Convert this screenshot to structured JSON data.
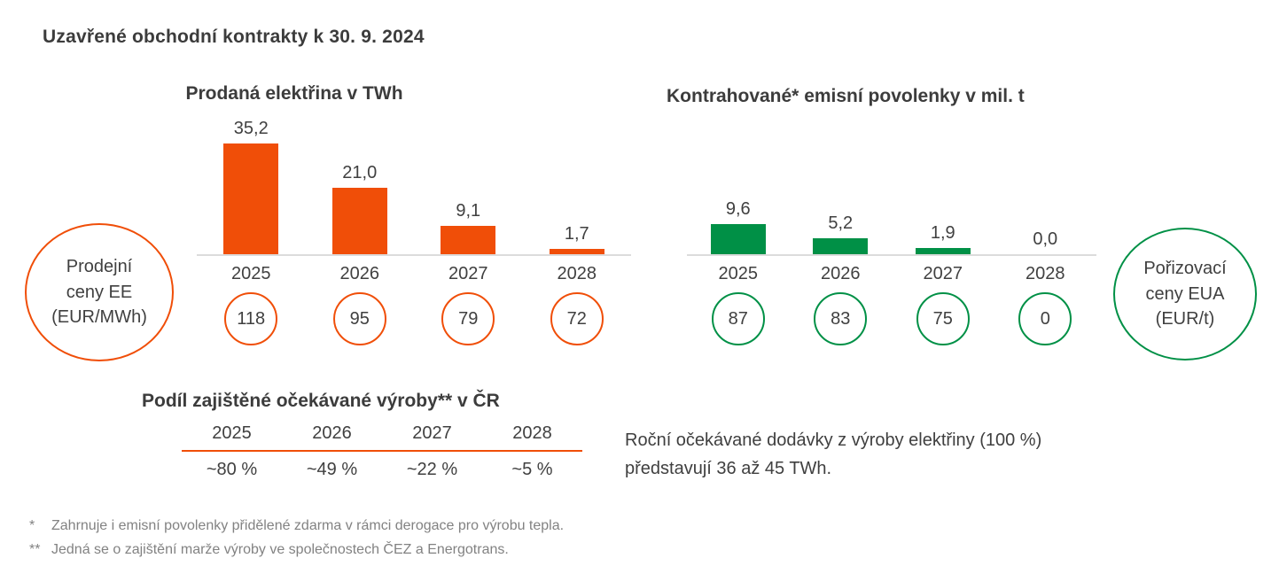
{
  "page_title": "Uzavřené obchodní kontrakty k 30. 9. 2024",
  "colors": {
    "orange": "#F04E08",
    "green": "#009046",
    "text_dark": "#3C3C3C",
    "footnote_gray": "#828282",
    "axis_gray": "#DCDCDC"
  },
  "chart_data": [
    {
      "type": "bar",
      "id": "sold-electricity",
      "title": "Prodaná elektřina v TWh",
      "categories": [
        "2025",
        "2026",
        "2027",
        "2028"
      ],
      "values": [
        35.2,
        21.0,
        9.1,
        1.7
      ],
      "value_labels": [
        "35,2",
        "21,0",
        "9,1",
        "1,7"
      ],
      "circle_values": [
        "118",
        "95",
        "79",
        "72"
      ],
      "circle_unit_label": "Prodejní ceny EE (EUR/MWh)",
      "bar_color": "#F04E08",
      "ylim": [
        0,
        38
      ],
      "grid": false,
      "legend": "none"
    },
    {
      "type": "bar",
      "id": "contracted-emission-allowances",
      "title": "Kontrahované* emisní povolenky v mil. t",
      "categories": [
        "2025",
        "2026",
        "2027",
        "2028"
      ],
      "values": [
        9.6,
        5.2,
        1.9,
        0.0
      ],
      "value_labels": [
        "9,6",
        "5,2",
        "1,9",
        "0,0"
      ],
      "circle_values": [
        "87",
        "83",
        "75",
        "0"
      ],
      "circle_unit_label": "Pořizovací ceny EUA (EUR/t)",
      "bar_color": "#009046",
      "ylim": [
        0,
        38
      ],
      "grid": false,
      "legend": "none"
    },
    {
      "type": "table",
      "id": "secured-production-share",
      "title": "Podíl zajištěné očekávané výroby** v ČR",
      "columns": [
        "2025",
        "2026",
        "2027",
        "2028"
      ],
      "values": [
        "~80 %",
        "~49 %",
        "~22 %",
        "~5 %"
      ]
    }
  ],
  "left_circle": {
    "lines": [
      "Prodejní",
      "ceny EE",
      "(EUR/MWh)"
    ]
  },
  "right_circle": {
    "lines": [
      "Pořizovací",
      "ceny EUA",
      "(EUR/t)"
    ]
  },
  "note": {
    "line1": "Roční očekávané dodávky z výroby elektřiny (100 %)",
    "line2": "představují 36 až 45 TWh."
  },
  "footnotes": [
    {
      "marker": "*",
      "text": "Zahrnuje i emisní povolenky přidělené zdarma v rámci derogace pro výrobu tepla."
    },
    {
      "marker": "**",
      "text": "Jedná se o zajištění marže výroby ve společnostech ČEZ a Energotrans."
    }
  ]
}
